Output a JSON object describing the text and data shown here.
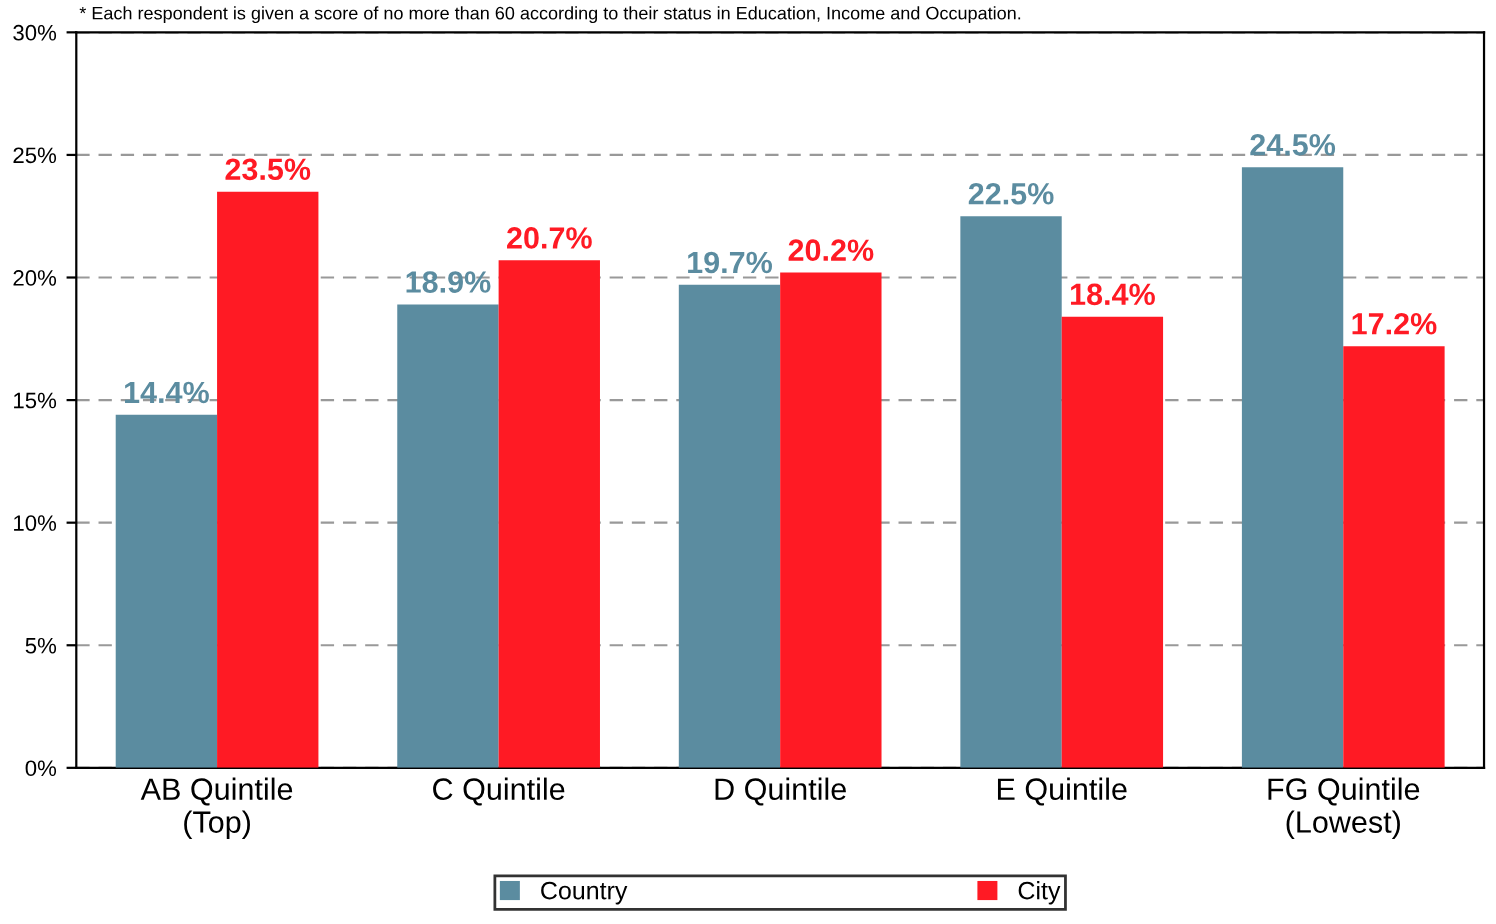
{
  "chart_data": {
    "type": "bar",
    "categories": [
      "AB Quintile\n(Top)",
      "C Quintile",
      "D Quintile",
      "E Quintile",
      "FG Quintile\n(Lowest)"
    ],
    "series": [
      {
        "name": "Country",
        "color": "#5b8ca0",
        "values": [
          14.4,
          18.9,
          19.7,
          22.5,
          24.5
        ],
        "value_labels": [
          "14.4%",
          "18.9%",
          "19.7%",
          "22.5%",
          "24.5%"
        ]
      },
      {
        "name": "City",
        "color": "#ff1a24",
        "values": [
          23.5,
          20.7,
          20.2,
          18.4,
          17.2
        ],
        "value_labels": [
          "23.5%",
          "20.7%",
          "20.2%",
          "18.4%",
          "17.2%"
        ]
      }
    ],
    "ylim": [
      0,
      30
    ],
    "yticks": [
      {
        "value": 0,
        "label": "0%"
      },
      {
        "value": 5,
        "label": "5%"
      },
      {
        "value": 10,
        "label": "10%"
      },
      {
        "value": 15,
        "label": "15%"
      },
      {
        "value": 20,
        "label": "20%"
      },
      {
        "value": 25,
        "label": "25%"
      },
      {
        "value": 30,
        "label": "30%"
      }
    ],
    "grid": "y",
    "legend": "bottom",
    "annotations": [
      "* Each respondent is given a score of no more than 60 according to their status in Education, Income and Occupation."
    ]
  }
}
